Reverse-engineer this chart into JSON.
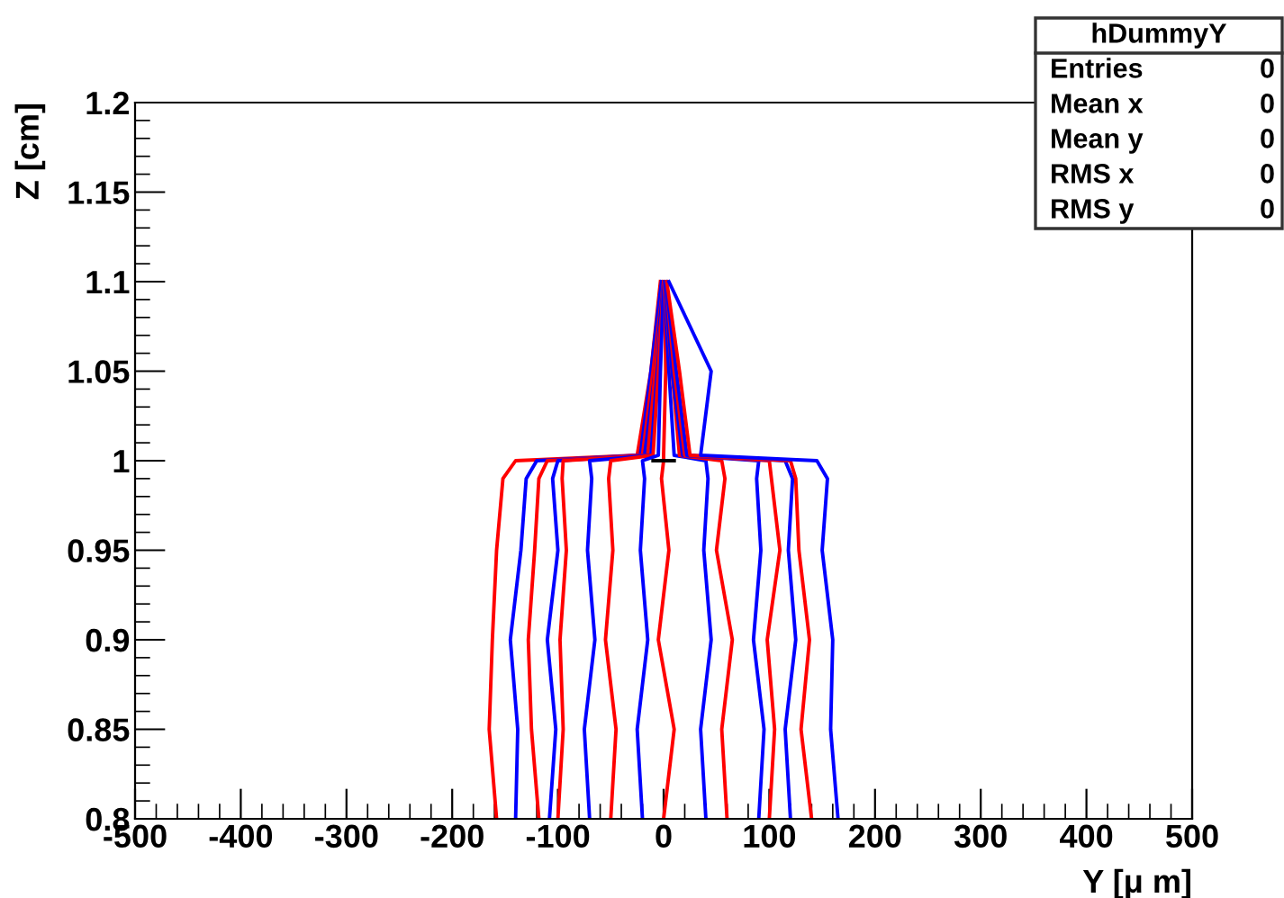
{
  "chart_data": {
    "type": "line",
    "xlabel": "Y [μ m]",
    "ylabel": "Z [cm]",
    "xlim": [
      -500,
      500
    ],
    "xticks": [
      -500,
      -400,
      -300,
      -200,
      -100,
      0,
      100,
      200,
      300,
      400,
      500
    ],
    "ylim": [
      0.8,
      1.2
    ],
    "yticks": [
      0.8,
      0.85,
      0.9,
      0.95,
      1,
      1.05,
      1.1,
      1.15,
      1.2
    ],
    "grid": false,
    "legend": false,
    "marker": "none",
    "line_style": "solid",
    "annotations": [
      "hDummyY",
      "Entries",
      "0",
      "Mean x",
      "0",
      "Mean y",
      "0",
      "RMS x",
      "0",
      "RMS y",
      "0"
    ],
    "series": [
      {
        "color": "#ff0000",
        "x": [
          -158,
          -165,
          -162,
          -158,
          -152,
          -140,
          -25,
          -12,
          -3
        ],
        "values": [
          0.8,
          0.85,
          0.9,
          0.95,
          0.99,
          1.0,
          1.003,
          1.05,
          1.1
        ]
      },
      {
        "color": "#0000ff",
        "x": [
          -140,
          -138,
          -145,
          -135,
          -130,
          -120,
          -22,
          -12,
          -2
        ],
        "values": [
          0.8,
          0.85,
          0.9,
          0.95,
          0.99,
          1.0,
          1.003,
          1.05,
          1.1
        ]
      },
      {
        "color": "#ff0000",
        "x": [
          -118,
          -125,
          -128,
          -122,
          -118,
          -110,
          -20,
          -10,
          0
        ],
        "values": [
          0.8,
          0.85,
          0.9,
          0.95,
          0.99,
          1.0,
          1.003,
          1.05,
          1.1
        ]
      },
      {
        "color": "#0000ff",
        "x": [
          -108,
          -102,
          -110,
          -100,
          -105,
          -100,
          -18,
          -8,
          0
        ],
        "values": [
          0.8,
          0.85,
          0.9,
          0.95,
          0.99,
          1.0,
          1.003,
          1.05,
          1.1
        ]
      },
      {
        "color": "#ff0000",
        "x": [
          -100,
          -95,
          -98,
          -92,
          -96,
          -95,
          -15,
          -8,
          2
        ],
        "values": [
          0.8,
          0.85,
          0.9,
          0.95,
          0.99,
          1.0,
          1.003,
          1.05,
          1.1
        ]
      },
      {
        "color": "#0000ff",
        "x": [
          -70,
          -75,
          -65,
          -72,
          -68,
          -70,
          -12,
          -6,
          1
        ],
        "values": [
          0.8,
          0.85,
          0.9,
          0.95,
          0.99,
          1.0,
          1.003,
          1.05,
          1.1
        ]
      },
      {
        "color": "#ff0000",
        "x": [
          -50,
          -45,
          -55,
          -48,
          -52,
          -50,
          -10,
          -5,
          0
        ],
        "values": [
          0.8,
          0.85,
          0.9,
          0.95,
          0.99,
          1.0,
          1.003,
          1.05,
          1.1
        ]
      },
      {
        "color": "#0000ff",
        "x": [
          -20,
          -25,
          -15,
          -22,
          -18,
          -20,
          -5,
          -3,
          0
        ],
        "values": [
          0.8,
          0.85,
          0.9,
          0.95,
          0.99,
          1.0,
          1.003,
          1.05,
          1.1
        ]
      },
      {
        "color": "#ff0000",
        "x": [
          0,
          10,
          -5,
          5,
          -2,
          0,
          0,
          2,
          1
        ],
        "values": [
          0.8,
          0.85,
          0.9,
          0.95,
          0.99,
          1.0,
          1.003,
          1.05,
          1.1
        ]
      },
      {
        "color": "#0000ff",
        "x": [
          40,
          35,
          45,
          38,
          42,
          40,
          10,
          5,
          0
        ],
        "values": [
          0.8,
          0.85,
          0.9,
          0.95,
          0.99,
          1.0,
          1.003,
          1.05,
          1.1
        ]
      },
      {
        "color": "#ff0000",
        "x": [
          60,
          55,
          65,
          50,
          58,
          55,
          15,
          8,
          0
        ],
        "values": [
          0.8,
          0.85,
          0.9,
          0.95,
          0.99,
          1.0,
          1.003,
          1.05,
          1.1
        ]
      },
      {
        "color": "#0000ff",
        "x": [
          90,
          95,
          85,
          92,
          88,
          90,
          18,
          8,
          1
        ],
        "values": [
          0.8,
          0.85,
          0.9,
          0.95,
          0.99,
          1.0,
          1.003,
          1.05,
          1.1
        ]
      },
      {
        "color": "#ff0000",
        "x": [
          100,
          105,
          98,
          110,
          102,
          100,
          20,
          10,
          2
        ],
        "values": [
          0.8,
          0.85,
          0.9,
          0.95,
          0.99,
          1.0,
          1.003,
          1.05,
          1.1
        ]
      },
      {
        "color": "#0000ff",
        "x": [
          120,
          115,
          125,
          118,
          122,
          115,
          22,
          12,
          2
        ],
        "values": [
          0.8,
          0.85,
          0.9,
          0.95,
          0.99,
          1.0,
          1.003,
          1.05,
          1.1
        ]
      },
      {
        "color": "#ff0000",
        "x": [
          140,
          130,
          138,
          128,
          125,
          120,
          25,
          15,
          3
        ],
        "values": [
          0.8,
          0.85,
          0.9,
          0.95,
          0.99,
          1.0,
          1.003,
          1.05,
          1.1
        ]
      },
      {
        "color": "#0000ff",
        "x": [
          165,
          158,
          160,
          150,
          155,
          145,
          35,
          45,
          5
        ],
        "values": [
          0.8,
          0.85,
          0.9,
          0.95,
          0.99,
          1.0,
          1.003,
          1.05,
          1.1
        ]
      },
      {
        "color": "#000000",
        "x": [
          -10,
          10
        ],
        "values": [
          1.0,
          1.0
        ]
      }
    ]
  }
}
